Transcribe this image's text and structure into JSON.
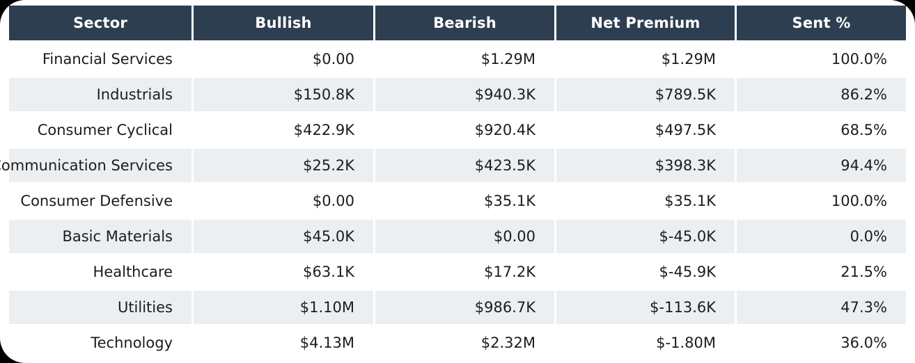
{
  "table": {
    "columns": [
      "Sector",
      "Bullish",
      "Bearish",
      "Net Premium",
      "Sent %"
    ],
    "fields": [
      "sector",
      "bullish",
      "bearish",
      "net_premium",
      "sent_pct"
    ],
    "rows": [
      {
        "sector": "Financial Services",
        "bullish": "$0.00",
        "bearish": "$1.29M",
        "net_premium": "$1.29M",
        "sent_pct": "100.0%"
      },
      {
        "sector": "Industrials",
        "bullish": "$150.8K",
        "bearish": "$940.3K",
        "net_premium": "$789.5K",
        "sent_pct": "86.2%"
      },
      {
        "sector": "Consumer Cyclical",
        "bullish": "$422.9K",
        "bearish": "$920.4K",
        "net_premium": "$497.5K",
        "sent_pct": "68.5%"
      },
      {
        "sector": "Communication Services",
        "bullish": "$25.2K",
        "bearish": "$423.5K",
        "net_premium": "$398.3K",
        "sent_pct": "94.4%"
      },
      {
        "sector": "Consumer Defensive",
        "bullish": "$0.00",
        "bearish": "$35.1K",
        "net_premium": "$35.1K",
        "sent_pct": "100.0%"
      },
      {
        "sector": "Basic Materials",
        "bullish": "$45.0K",
        "bearish": "$0.00",
        "net_premium": "$-45.0K",
        "sent_pct": "0.0%"
      },
      {
        "sector": "Healthcare",
        "bullish": "$63.1K",
        "bearish": "$17.2K",
        "net_premium": "$-45.9K",
        "sent_pct": "21.5%"
      },
      {
        "sector": "Utilities",
        "bullish": "$1.10M",
        "bearish": "$986.7K",
        "net_premium": "$-113.6K",
        "sent_pct": "47.3%"
      },
      {
        "sector": "Technology",
        "bullish": "$4.13M",
        "bearish": "$2.32M",
        "net_premium": "$-1.80M",
        "sent_pct": "36.0%"
      }
    ]
  },
  "colors": {
    "page_background": "#000000",
    "card_background": "#ffffff",
    "header_background": "#2d3e50",
    "header_text": "#ffffff",
    "row_stripe": "#eceff1",
    "body_text": "#1c1c1c"
  }
}
